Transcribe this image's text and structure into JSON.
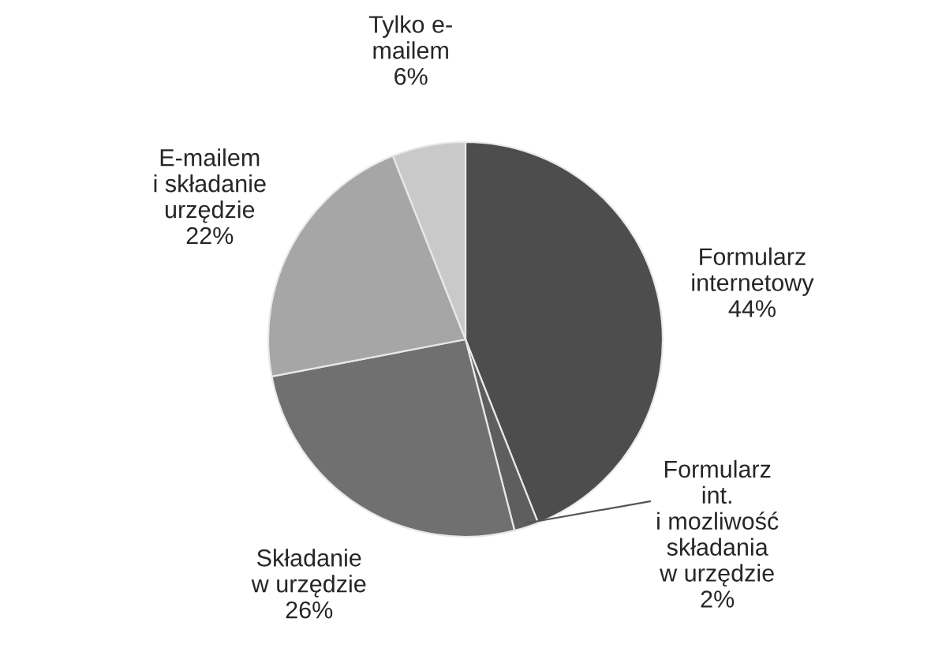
{
  "chart_data": {
    "type": "pie",
    "categories": [
      "Formularz\ninternetowy",
      "Formularz\nint.\ni mozliwość\nskładania\nw urzędzie",
      "Składanie\nw urzędzie",
      "E-mailem\ni składanie\nurzędzie",
      "Tylko e-\nmailem"
    ],
    "values": [
      44,
      2,
      26,
      22,
      6
    ],
    "colors": [
      "#4d4d4d",
      "#5e5e5e",
      "#707070",
      "#a6a6a6",
      "#c9c9c9"
    ],
    "value_labels": [
      "44%",
      "2%",
      "26%",
      "22%",
      "6%"
    ]
  }
}
